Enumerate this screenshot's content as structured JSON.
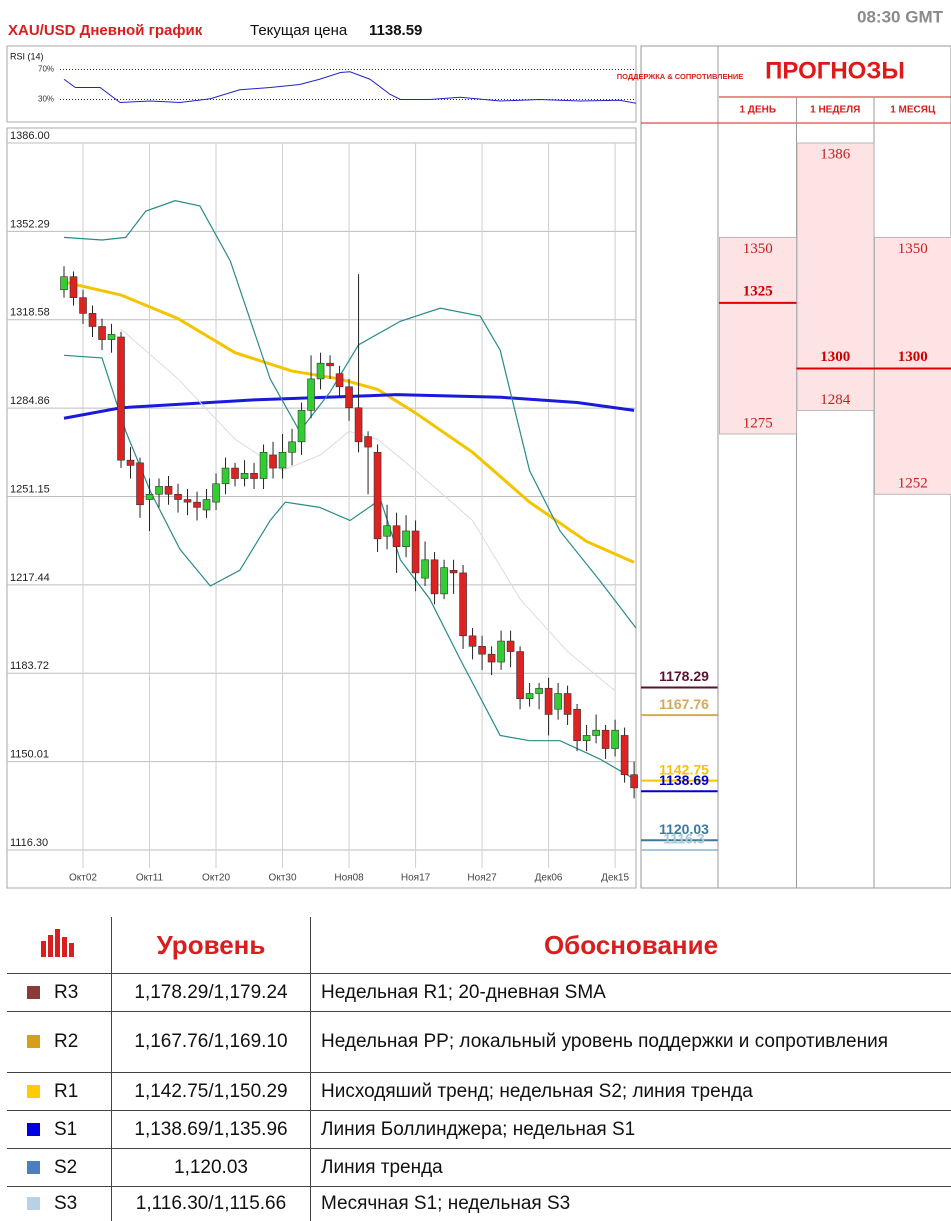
{
  "header": {
    "title": "XAU/USD Дневной график",
    "price_label": "Текущая цена",
    "price": 1138.59,
    "time": "08:30 GMT"
  },
  "chart_data": [
    {
      "type": "candlestick",
      "categories": [
        null,
        null,
        "Окт02",
        null,
        null,
        null,
        null,
        null,
        null,
        "Окт11",
        null,
        null,
        null,
        null,
        null,
        null,
        "Окт20",
        null,
        null,
        null,
        null,
        null,
        null,
        "Окт30",
        null,
        null,
        null,
        null,
        null,
        null,
        "Ноя08",
        null,
        null,
        null,
        null,
        null,
        null,
        "Ноя17",
        null,
        null,
        null,
        null,
        null,
        null,
        "Ноя27",
        null,
        null,
        null,
        null,
        null,
        null,
        "Дек06",
        null,
        null,
        null,
        null,
        null,
        null,
        "Дек15",
        null,
        null
      ],
      "xlim": [
        -6,
        60.2
      ],
      "ylim": [
        1101.8,
        1386
      ],
      "yticks": [
        {
          "value": 1386,
          "label": "1386.00"
        },
        1352.29,
        1318.58,
        1284.86,
        1251.15,
        1217.44,
        1183.72,
        1150.01,
        {
          "value": 1116.3,
          "label": "1116.30"
        }
      ],
      "grid": true,
      "up_color": "#33cc33",
      "down_color": "#dd2222",
      "open": [
        1330,
        1335,
        1327,
        1321,
        1316,
        1311,
        1312,
        1265,
        1264,
        1250,
        1252,
        1255,
        1252,
        1250,
        1249,
        1246,
        1249,
        1256,
        1262,
        1258,
        1260,
        1258,
        1267,
        1262,
        1268,
        1272,
        1284,
        1296,
        1302,
        1298,
        1293,
        1285,
        1274,
        1268,
        1236,
        1240,
        1232,
        1238,
        1220,
        1227,
        1214,
        1223,
        1222,
        1198,
        1194,
        1191,
        1188,
        1196,
        1192,
        1174,
        1176,
        1178,
        1170,
        1176,
        1170,
        1158,
        1160,
        1162,
        1155,
        1160,
        1145
      ],
      "high": [
        1339,
        1337,
        1330,
        1324,
        1319,
        1317,
        1314,
        1270,
        1266,
        1258,
        1258,
        1259,
        1256,
        1254,
        1253,
        1254,
        1260,
        1266,
        1264,
        1265,
        1264,
        1271,
        1272,
        1275,
        1277,
        1287,
        1305,
        1306,
        1305,
        1301,
        1296,
        1336,
        1276,
        1271,
        1248,
        1245,
        1244,
        1242,
        1234,
        1230,
        1227,
        1227,
        1225,
        1201,
        1198,
        1194,
        1200,
        1200,
        1194,
        1180,
        1180,
        1182,
        1180,
        1179,
        1172,
        1164,
        1168,
        1164,
        1166,
        1163,
        1150
      ],
      "low": [
        1327,
        1324,
        1317,
        1312,
        1307,
        1306,
        1262,
        1258,
        1243,
        1238,
        1247,
        1248,
        1245,
        1244,
        1242,
        1243,
        1246,
        1252,
        1255,
        1255,
        1254,
        1254,
        1258,
        1258,
        1263,
        1267,
        1281,
        1292,
        1296,
        1289,
        1280,
        1268,
        1252,
        1230,
        1231,
        1222,
        1228,
        1215,
        1217,
        1210,
        1212,
        1214,
        1193,
        1189,
        1185,
        1183,
        1185,
        1186,
        1170,
        1171,
        1170,
        1160,
        1166,
        1164,
        1154,
        1154,
        1157,
        1151,
        1152,
        1142,
        1136
      ],
      "close": [
        1335,
        1327,
        1321,
        1316,
        1311,
        1313,
        1265,
        1263,
        1248,
        1252,
        1255,
        1252,
        1250,
        1249,
        1247,
        1250,
        1256,
        1262,
        1258,
        1260,
        1258,
        1268,
        1262,
        1268,
        1272,
        1284,
        1296,
        1302,
        1301,
        1293,
        1285,
        1272,
        1270,
        1235,
        1240,
        1232,
        1238,
        1222,
        1227,
        1214,
        1224,
        1222,
        1198,
        1194,
        1191,
        1188,
        1196,
        1192,
        1174,
        1176,
        1178,
        1168,
        1176,
        1168,
        1158,
        1160,
        1162,
        1155,
        1162,
        1145,
        1140
      ],
      "series": [
        {
          "color": "#f5c400",
          "width": 3,
          "x": [
            0,
            6,
            12,
            18,
            24,
            29,
            33,
            37,
            43,
            49,
            55,
            60
          ],
          "values": [
            1333,
            1328,
            1319,
            1306,
            1299,
            1296,
            1292,
            1283,
            1268,
            1249,
            1234,
            1226
          ]
        },
        {
          "color": "#1a1adc",
          "width": 3,
          "x": [
            0,
            6,
            20,
            35,
            46,
            54,
            60
          ],
          "values": [
            1281,
            1285,
            1288,
            1290,
            1289,
            1287,
            1284
          ]
        },
        {
          "color": "#dcdcdc",
          "width": 1,
          "x": [
            6,
            12,
            18,
            23,
            27,
            30,
            33,
            37,
            43,
            48,
            53,
            58
          ],
          "values": [
            1315,
            1296,
            1273,
            1261,
            1267,
            1276,
            1273,
            1261,
            1242,
            1212,
            1192,
            1177
          ]
        },
        {
          "color": "#2a8a8a",
          "width": 1.2,
          "x": [
            0,
            4,
            6.5,
            8.6,
            11.7,
            14.3,
            17.5,
            21.7,
            24.8,
            28,
            31,
            35.4,
            39.6,
            43.8,
            45.9,
            49,
            52.2,
            56.4,
            60.2
          ],
          "values": [
            1350,
            1349,
            1350,
            1360,
            1364,
            1362,
            1341,
            1296,
            1276,
            1291,
            1309,
            1318,
            1323,
            1320,
            1307,
            1261,
            1238,
            1219,
            1201
          ]
        },
        {
          "color": "#2a8a8a",
          "width": 1.2,
          "x": [
            0,
            4,
            6.5,
            9.1,
            12.2,
            15.4,
            18.5,
            21.7,
            23.3,
            26.9,
            30.1,
            33.3,
            35.4,
            38.5,
            41.7,
            45.9,
            49,
            52.2,
            56.4,
            60.2
          ],
          "values": [
            1305,
            1304,
            1276,
            1253,
            1231,
            1217,
            1223,
            1242,
            1249,
            1247,
            1242,
            1250,
            1227,
            1212,
            1189,
            1160,
            1158,
            1158,
            1151,
            1143
          ]
        }
      ],
      "levels": [
        {
          "value": 1178.29,
          "color": "#5a1230"
        },
        {
          "value": 1167.76,
          "color": "#d4aa5a"
        },
        {
          "value": 1142.75,
          "color": "#f5c400"
        },
        {
          "value": 1138.69,
          "color": "#0000c8"
        },
        {
          "value": 1120.03,
          "color": "#3a7aa0"
        },
        {
          "value": 1116.3,
          "color": "#a8c8dc"
        }
      ]
    },
    {
      "type": "line",
      "title": "RSI (14)",
      "xlim": [
        -6,
        60.2
      ],
      "ylim": [
        0,
        100
      ],
      "yticks": [
        {
          "value": 70,
          "label": "70%"
        },
        {
          "value": 30,
          "label": "30%"
        }
      ],
      "color": "#2222cc",
      "x": [
        0,
        1.2,
        3.8,
        5.9,
        9.1,
        12.2,
        15.4,
        18.5,
        21.7,
        24.8,
        26.9,
        29.1,
        30.1,
        32.2,
        34.3,
        35.4,
        38.5,
        41.7,
        45.9,
        50.1,
        54.3,
        58.5,
        60.2
      ],
      "values": [
        57,
        46,
        46,
        26,
        28,
        26,
        31,
        43,
        46,
        50,
        57,
        66,
        67,
        57,
        37,
        30,
        30,
        33,
        28,
        30,
        28,
        29,
        25
      ]
    }
  ],
  "forecast": {
    "left_header": "ПОДДЕРЖКА & СОПРОТИВЛЕНИЕ",
    "title": "ПРОГНОЗЫ",
    "columns": [
      {
        "name": "1 ДЕНЬ",
        "high": 1350,
        "target": 1325,
        "low": 1275
      },
      {
        "name": "1 НЕДЕЛЯ",
        "high": 1386,
        "target": 1300,
        "low": 1284
      },
      {
        "name": "1 МЕСЯЦ",
        "high": 1350,
        "target": 1300,
        "low": 1252
      }
    ]
  },
  "table": {
    "header": [
      "Уровень",
      "Обоснование"
    ],
    "row_colors": [
      "#8b3a3a",
      "#d4a017",
      "#ffcc00",
      "#0000e0",
      "#4a7fc0",
      "#b8d0e8"
    ],
    "rows": [
      [
        "R3",
        "1,178.29/1,179.24",
        "Недельная R1; 20-дневная SMA"
      ],
      [
        "R2",
        "1,167.76/1,169.10",
        "Недельная PP; локальный уровень поддержки и сопротивления"
      ],
      [
        "R1",
        "1,142.75/1,150.29",
        "Нисходяший тренд; недельная S2; линия тренда"
      ],
      [
        "S1",
        "1,138.69/1,135.96",
        "Линия Боллинджера; недельная S1"
      ],
      [
        "S2",
        "1,120.03",
        "Линия тренда"
      ],
      [
        "S3",
        "1,116.30/1,115.66",
        "Месячная S1; недельная S3"
      ]
    ]
  }
}
